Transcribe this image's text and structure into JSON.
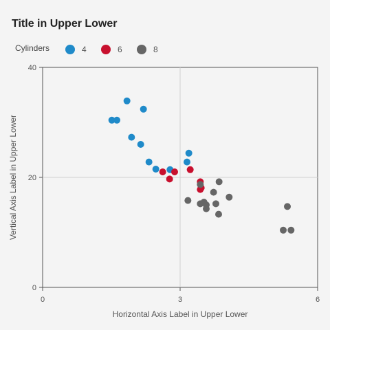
{
  "chart_data": {
    "type": "scatter",
    "title": "Title in Upper Lower",
    "xlabel": "Horizontal Axis Label in Upper Lower",
    "ylabel": "Vertical Axis Label in Upper Lower",
    "xlim": [
      0,
      6
    ],
    "ylim": [
      0,
      40
    ],
    "xticks": [
      "0",
      "3",
      "6"
    ],
    "yticks": [
      "0",
      "20",
      "40"
    ],
    "grid": true,
    "legend": {
      "title": "Cylinders",
      "placement": "top-left"
    },
    "series": [
      {
        "name": "4",
        "color": "#1f8ac9",
        "points": [
          [
            1.51,
            30.4
          ],
          [
            1.62,
            30.4
          ],
          [
            1.84,
            33.9
          ],
          [
            1.94,
            27.3
          ],
          [
            2.14,
            26.0
          ],
          [
            2.2,
            32.4
          ],
          [
            2.32,
            22.8
          ],
          [
            2.47,
            21.5
          ],
          [
            2.78,
            21.4
          ],
          [
            3.15,
            22.8
          ],
          [
            3.19,
            24.4
          ]
        ]
      },
      {
        "name": "6",
        "color": "#c8102e",
        "points": [
          [
            2.62,
            21.0
          ],
          [
            2.77,
            19.7
          ],
          [
            2.88,
            21.0
          ],
          [
            3.22,
            21.4
          ],
          [
            3.44,
            19.2
          ],
          [
            3.44,
            17.8
          ],
          [
            3.46,
            18.1
          ]
        ]
      },
      {
        "name": "8",
        "color": "#666666",
        "points": [
          [
            3.17,
            15.8
          ],
          [
            3.44,
            18.7
          ],
          [
            3.44,
            15.2
          ],
          [
            3.52,
            15.5
          ],
          [
            3.57,
            15.0
          ],
          [
            3.57,
            14.3
          ],
          [
            3.73,
            17.3
          ],
          [
            3.78,
            15.2
          ],
          [
            3.84,
            13.3
          ],
          [
            3.85,
            19.2
          ],
          [
            4.07,
            16.4
          ],
          [
            5.25,
            10.4
          ],
          [
            5.34,
            14.7
          ],
          [
            5.42,
            10.4
          ]
        ]
      }
    ]
  }
}
